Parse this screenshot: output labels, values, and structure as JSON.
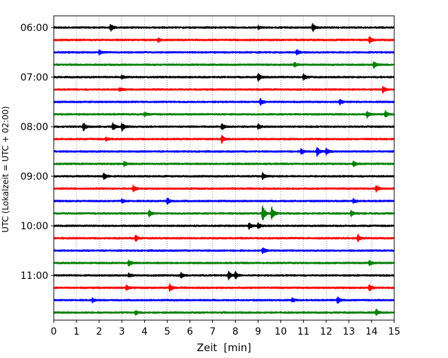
{
  "chart_data": {
    "type": "line",
    "chart_kind": "helicorder seismogram",
    "xlabel": "Zeit  [min]",
    "ylabel": "UTC (Lokalzeit = UTC + 02:00)",
    "xlim": [
      0,
      15
    ],
    "x_ticks": [
      "0",
      "1",
      "2",
      "3",
      "4",
      "5",
      "6",
      "7",
      "8",
      "9",
      "10",
      "11",
      "12",
      "13",
      "14",
      "15"
    ],
    "y_tick_labels": [
      "06:00",
      "07:00",
      "08:00",
      "09:00",
      "10:00",
      "11:00"
    ],
    "grid": "vertical dotted lines at each minute",
    "trace_colors": [
      "#000000",
      "#ff0000",
      "#0000ff",
      "#008000"
    ],
    "trace_count": 24,
    "trace_start_times": [
      "06:00",
      "06:15",
      "06:30",
      "06:45",
      "07:00",
      "07:15",
      "07:30",
      "07:45",
      "08:00",
      "08:15",
      "08:30",
      "08:45",
      "09:00",
      "09:15",
      "09:30",
      "09:45",
      "10:00",
      "10:15",
      "10:30",
      "10:45",
      "11:00",
      "11:15",
      "11:30",
      "11:45"
    ],
    "events": [
      {
        "trace": 0,
        "t": 2.5,
        "amp": 1.0
      },
      {
        "trace": 0,
        "t": 11.4,
        "amp": 1.2
      },
      {
        "trace": 0,
        "t": 9.0,
        "amp": 0.5
      },
      {
        "trace": 1,
        "t": 13.9,
        "amp": 1.0
      },
      {
        "trace": 1,
        "t": 4.6,
        "amp": 0.6
      },
      {
        "trace": 2,
        "t": 2.0,
        "amp": 0.8
      },
      {
        "trace": 2,
        "t": 10.7,
        "amp": 0.8
      },
      {
        "trace": 3,
        "t": 14.1,
        "amp": 1.0
      },
      {
        "trace": 3,
        "t": 10.6,
        "amp": 0.6
      },
      {
        "trace": 4,
        "t": 9.0,
        "amp": 1.3
      },
      {
        "trace": 4,
        "t": 11.0,
        "amp": 1.0
      },
      {
        "trace": 4,
        "t": 3.0,
        "amp": 0.6
      },
      {
        "trace": 5,
        "t": 14.5,
        "amp": 1.0
      },
      {
        "trace": 5,
        "t": 2.9,
        "amp": 0.6
      },
      {
        "trace": 6,
        "t": 9.1,
        "amp": 1.0
      },
      {
        "trace": 6,
        "t": 12.6,
        "amp": 0.8
      },
      {
        "trace": 7,
        "t": 14.6,
        "amp": 1.1
      },
      {
        "trace": 7,
        "t": 13.8,
        "amp": 0.9
      },
      {
        "trace": 7,
        "t": 4.0,
        "amp": 0.6
      },
      {
        "trace": 8,
        "t": 1.3,
        "amp": 1.2
      },
      {
        "trace": 8,
        "t": 2.6,
        "amp": 1.2
      },
      {
        "trace": 8,
        "t": 3.0,
        "amp": 1.3
      },
      {
        "trace": 8,
        "t": 7.4,
        "amp": 1.0
      },
      {
        "trace": 8,
        "t": 9.0,
        "amp": 0.8
      },
      {
        "trace": 9,
        "t": 7.4,
        "amp": 1.1
      },
      {
        "trace": 9,
        "t": 2.3,
        "amp": 0.5
      },
      {
        "trace": 10,
        "t": 11.6,
        "amp": 1.3
      },
      {
        "trace": 10,
        "t": 12.0,
        "amp": 1.0
      },
      {
        "trace": 10,
        "t": 10.9,
        "amp": 1.0
      },
      {
        "trace": 11,
        "t": 3.1,
        "amp": 0.8
      },
      {
        "trace": 11,
        "t": 13.2,
        "amp": 0.8
      },
      {
        "trace": 12,
        "t": 2.2,
        "amp": 1.0
      },
      {
        "trace": 12,
        "t": 9.2,
        "amp": 0.9
      },
      {
        "trace": 13,
        "t": 3.5,
        "amp": 1.0
      },
      {
        "trace": 13,
        "t": 14.2,
        "amp": 1.0
      },
      {
        "trace": 14,
        "t": 5.0,
        "amp": 1.0
      },
      {
        "trace": 14,
        "t": 3.0,
        "amp": 0.6
      },
      {
        "trace": 14,
        "t": 13.2,
        "amp": 0.6
      },
      {
        "trace": 15,
        "t": 9.2,
        "amp": 2.4
      },
      {
        "trace": 15,
        "t": 9.6,
        "amp": 2.0
      },
      {
        "trace": 15,
        "t": 4.2,
        "amp": 1.0
      },
      {
        "trace": 15,
        "t": 13.1,
        "amp": 0.8
      },
      {
        "trace": 16,
        "t": 8.6,
        "amp": 1.0
      },
      {
        "trace": 16,
        "t": 9.0,
        "amp": 0.8
      },
      {
        "trace": 17,
        "t": 3.6,
        "amp": 0.9
      },
      {
        "trace": 17,
        "t": 13.4,
        "amp": 1.0
      },
      {
        "trace": 18,
        "t": 9.2,
        "amp": 0.9
      },
      {
        "trace": 19,
        "t": 3.3,
        "amp": 0.9
      },
      {
        "trace": 19,
        "t": 13.9,
        "amp": 0.9
      },
      {
        "trace": 20,
        "t": 5.6,
        "amp": 0.8
      },
      {
        "trace": 20,
        "t": 7.7,
        "amp": 1.2
      },
      {
        "trace": 20,
        "t": 8.0,
        "amp": 1.1
      },
      {
        "trace": 20,
        "t": 3.3,
        "amp": 0.6
      },
      {
        "trace": 21,
        "t": 5.1,
        "amp": 1.1
      },
      {
        "trace": 21,
        "t": 3.2,
        "amp": 0.8
      },
      {
        "trace": 21,
        "t": 13.9,
        "amp": 1.0
      },
      {
        "trace": 22,
        "t": 12.5,
        "amp": 1.1
      },
      {
        "trace": 22,
        "t": 1.7,
        "amp": 0.6
      },
      {
        "trace": 22,
        "t": 10.5,
        "amp": 0.6
      },
      {
        "trace": 23,
        "t": 14.2,
        "amp": 0.9
      },
      {
        "trace": 23,
        "t": 3.6,
        "amp": 0.6
      }
    ]
  }
}
